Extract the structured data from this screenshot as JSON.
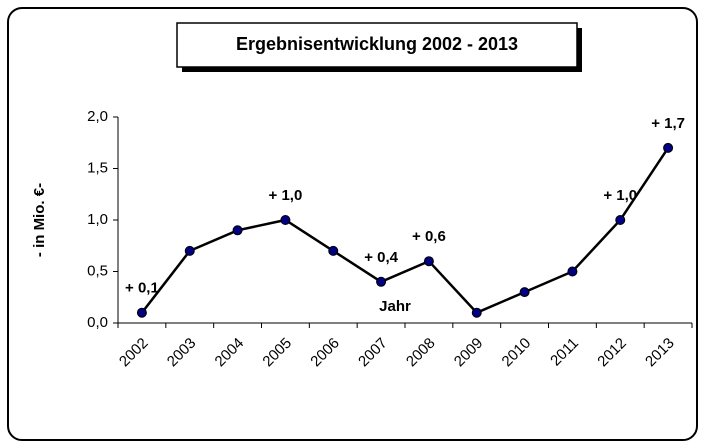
{
  "chart_data": {
    "type": "line",
    "title": "Ergebnisentwicklung 2002 - 2013",
    "x_label": "Jahr",
    "y_label": "- in Mio. €-",
    "categories": [
      "2002",
      "2003",
      "2004",
      "2005",
      "2006",
      "2007",
      "2008",
      "2009",
      "2010",
      "2011",
      "2012",
      "2013"
    ],
    "values": [
      0.1,
      0.7,
      0.9,
      1.0,
      0.7,
      0.4,
      0.6,
      0.1,
      0.3,
      0.5,
      1.0,
      1.7
    ],
    "value_labels": [
      "+ 0,1",
      null,
      null,
      "+ 1,0",
      null,
      "+ 0,4",
      "+ 0,6",
      null,
      null,
      null,
      "+ 1,0",
      "+ 1,7"
    ],
    "color": "#000080",
    "ylim": [
      0,
      2
    ],
    "yticks": [
      {
        "value": 0,
        "label": "0,0"
      },
      {
        "value": 0.5,
        "label": "0,5"
      },
      {
        "value": 1,
        "label": "1,0"
      },
      {
        "value": 1.5,
        "label": "1,5"
      },
      {
        "value": 2,
        "label": "2,0"
      }
    ]
  }
}
